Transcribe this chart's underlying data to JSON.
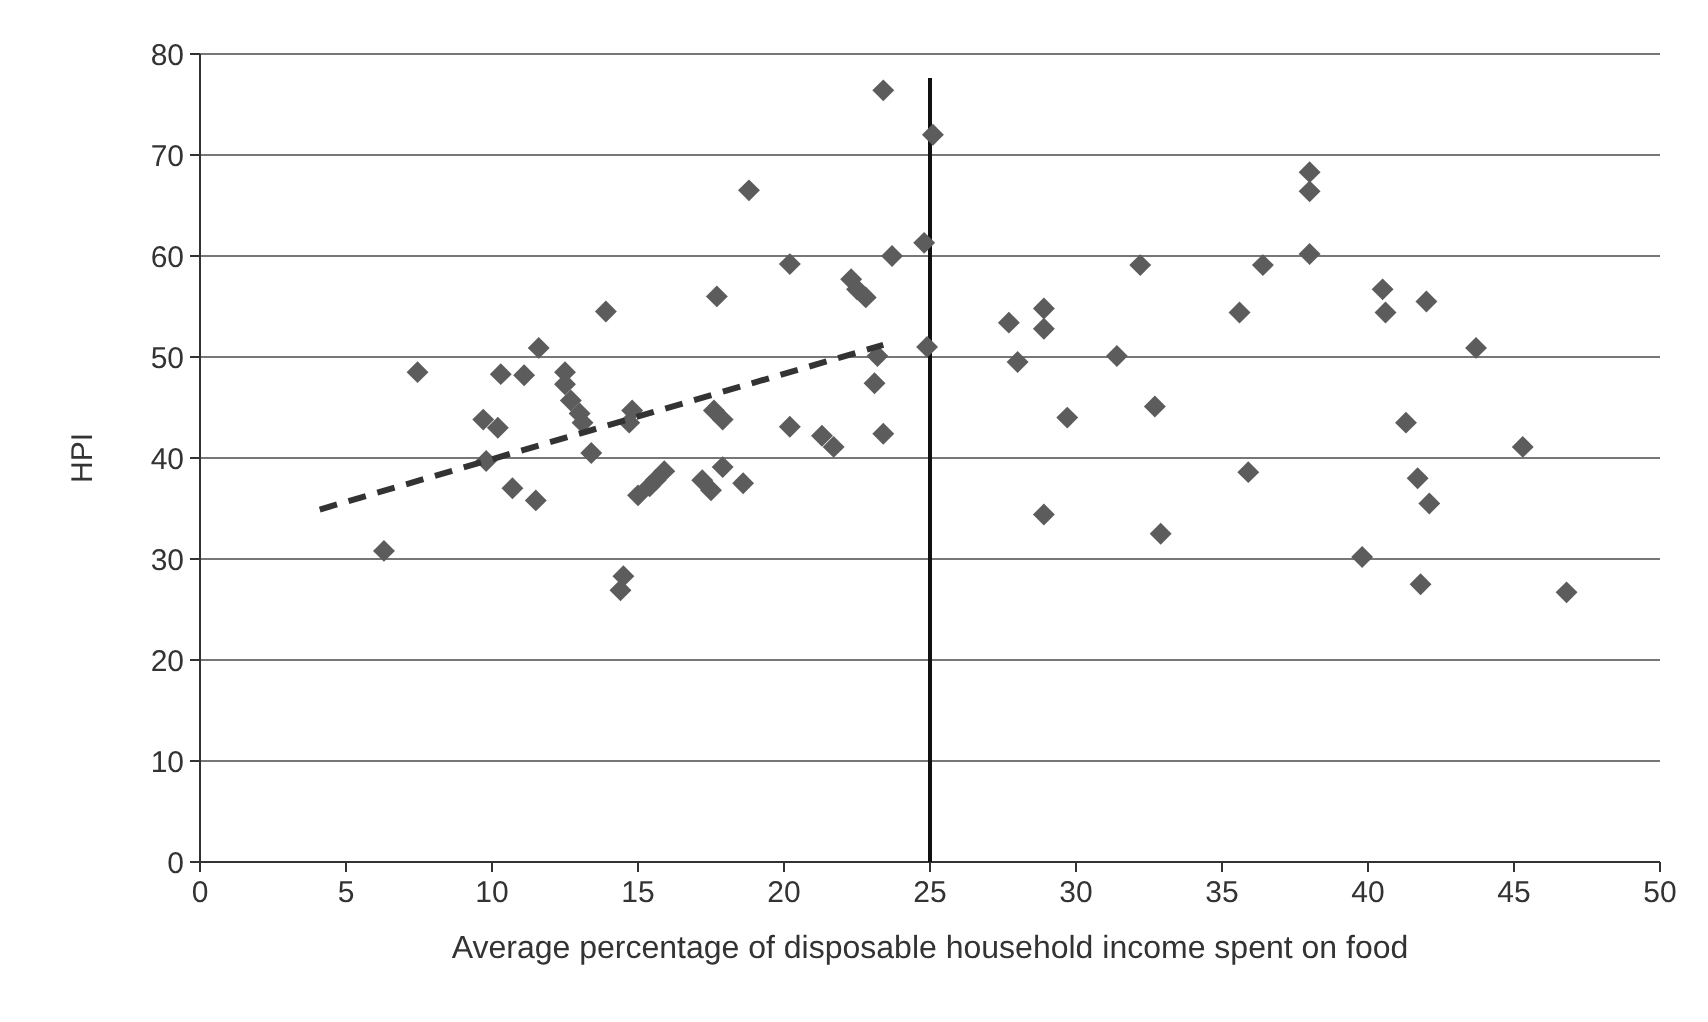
{
  "chart_data": {
    "type": "scatter",
    "xlabel": "Average percentage of disposable household income spent on food",
    "ylabel": "HPI",
    "xlim": [
      0,
      50
    ],
    "ylim": [
      0,
      80
    ],
    "xticks": [
      0,
      5,
      10,
      15,
      20,
      25,
      30,
      35,
      40,
      45,
      50
    ],
    "yticks": [
      0,
      10,
      20,
      30,
      40,
      50,
      60,
      70,
      80
    ],
    "grid": "y",
    "series": [
      {
        "color": "#5c5c5c",
        "marker": "diamond",
        "x": [
          6.3,
          7.45,
          10.3,
          11.1,
          11.6,
          9.7,
          10.2,
          9.8,
          10.7,
          11.5,
          12.5,
          12.5,
          12.7,
          13.0,
          13.1,
          13.4,
          13.9,
          14.5,
          14.4,
          14.8,
          14.7,
          15.0,
          15.4,
          15.6,
          15.9,
          17.7,
          17.6,
          17.9,
          17.2,
          17.5,
          17.9,
          18.6,
          18.8,
          20.2,
          20.2,
          21.3,
          21.7,
          22.3,
          22.5,
          22.8,
          23.4,
          23.7,
          24.8,
          25.1,
          24.9,
          23.2,
          23.1,
          23.4,
          27.7,
          28.0,
          28.9,
          28.9,
          29.7,
          28.9,
          31.4,
          32.2,
          32.7,
          32.9,
          35.6,
          35.9,
          36.4,
          38.0,
          38.0,
          38.0,
          39.8,
          40.5,
          40.6,
          42.0,
          41.3,
          41.7,
          42.1,
          41.8,
          43.7,
          45.3,
          46.8
        ],
        "values": [
          30.8,
          48.5,
          48.3,
          48.2,
          50.9,
          43.8,
          43.0,
          39.7,
          37.0,
          35.8,
          48.5,
          47.3,
          45.7,
          44.4,
          43.5,
          40.5,
          54.5,
          28.3,
          26.9,
          44.7,
          43.5,
          36.3,
          37.2,
          37.8,
          38.7,
          56.0,
          44.7,
          43.8,
          37.8,
          36.8,
          39.1,
          37.5,
          66.5,
          59.2,
          43.1,
          42.2,
          41.1,
          57.7,
          56.7,
          55.9,
          76.4,
          60.0,
          61.3,
          72.0,
          51.0,
          50.1,
          47.4,
          42.4,
          53.4,
          49.5,
          54.8,
          52.8,
          44.0,
          34.4,
          50.1,
          59.1,
          45.1,
          32.5,
          54.4,
          38.6,
          59.1,
          68.3,
          66.4,
          60.2,
          30.2,
          56.7,
          54.4,
          55.5,
          43.5,
          38.0,
          35.5,
          27.5,
          50.9,
          41.1,
          26.7
        ]
      },
      {
        "type": "line",
        "color": "#333333",
        "line_style": "dashed",
        "marker": "none",
        "x": [
          4.1,
          23.4
        ],
        "values": [
          34.9,
          51.2
        ]
      }
    ],
    "ref_lines": [
      {
        "axis": "x",
        "value": 25,
        "color": "#111111"
      }
    ]
  }
}
